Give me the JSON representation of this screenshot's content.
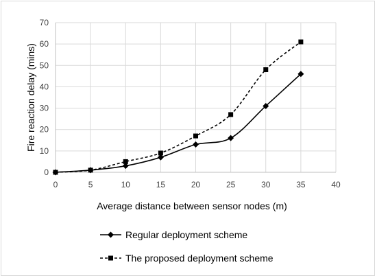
{
  "chart_data": {
    "type": "line",
    "title": "",
    "xlabel": "Average distance between sensor nodes (m)",
    "ylabel": "Fire reaction delay (mins)",
    "xlim": [
      0,
      40
    ],
    "ylim": [
      0,
      70
    ],
    "x_ticks": [
      0,
      5,
      10,
      15,
      20,
      25,
      30,
      35,
      40
    ],
    "y_ticks": [
      0,
      10,
      20,
      30,
      40,
      50,
      60,
      70
    ],
    "grid": "horizontal",
    "legend_position": "bottom",
    "series": [
      {
        "name": "Regular deployment scheme",
        "marker": "diamond",
        "line_style": "solid",
        "color": "#000000",
        "x": [
          0,
          5,
          10,
          15,
          20,
          25,
          30,
          35
        ],
        "y": [
          0,
          1,
          3,
          7,
          13,
          16,
          31,
          46
        ]
      },
      {
        "name": "The proposed deployment scheme",
        "marker": "square",
        "line_style": "dashed",
        "color": "#000000",
        "x": [
          0,
          5,
          10,
          15,
          20,
          25,
          30,
          35
        ],
        "y": [
          0,
          1,
          5,
          9,
          17,
          27,
          48,
          61
        ]
      }
    ]
  }
}
